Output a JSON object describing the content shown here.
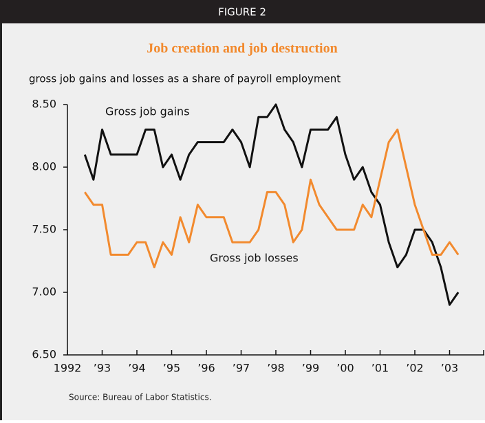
{
  "chart_data": {
    "type": "line",
    "figure_label": "FIGURE 2",
    "title": "Job creation and job destruction",
    "subtitle": "gross job gains and losses as a share of payroll employment",
    "source": "Source: Bureau of Labor Statistics.",
    "x": [
      1992.5,
      1992.75,
      1993,
      1993.25,
      1993.5,
      1993.75,
      1994,
      1994.25,
      1994.5,
      1994.75,
      1995,
      1995.25,
      1995.5,
      1995.75,
      1996,
      1996.25,
      1996.5,
      1996.75,
      1997,
      1997.25,
      1997.5,
      1997.75,
      1998,
      1998.25,
      1998.5,
      1998.75,
      1999,
      1999.25,
      1999.5,
      1999.75,
      2000,
      2000.25,
      2000.5,
      2000.75,
      2001,
      2001.25,
      2001.5,
      2001.75,
      2002,
      2002.25,
      2002.5,
      2002.75,
      2003,
      2003.25
    ],
    "series": [
      {
        "name": "Gross job gains",
        "color": "#111111",
        "values": [
          8.1,
          7.9,
          8.3,
          8.1,
          8.1,
          8.1,
          8.1,
          8.3,
          8.3,
          8.0,
          8.1,
          7.9,
          8.1,
          8.2,
          8.2,
          8.2,
          8.2,
          8.3,
          8.2,
          8.0,
          8.4,
          8.4,
          8.5,
          8.3,
          8.2,
          8.0,
          8.3,
          8.3,
          8.3,
          8.4,
          8.1,
          7.9,
          8.0,
          7.8,
          7.7,
          7.4,
          7.2,
          7.3,
          7.5,
          7.5,
          7.4,
          7.2,
          6.9,
          7.0
        ]
      },
      {
        "name": "Gross job losses",
        "color": "#f28a2e",
        "values": [
          7.8,
          7.7,
          7.7,
          7.3,
          7.3,
          7.3,
          7.4,
          7.4,
          7.2,
          7.4,
          7.3,
          7.6,
          7.4,
          7.7,
          7.6,
          7.6,
          7.6,
          7.4,
          7.4,
          7.4,
          7.5,
          7.8,
          7.8,
          7.7,
          7.4,
          7.5,
          7.9,
          7.7,
          7.6,
          7.5,
          7.5,
          7.5,
          7.7,
          7.6,
          7.9,
          8.2,
          8.3,
          8.0,
          7.7,
          7.5,
          7.3,
          7.3,
          7.4,
          7.3
        ]
      }
    ],
    "xlim": [
      1992,
      2004
    ],
    "xticks": [
      {
        "value": 1992,
        "label": "1992"
      },
      {
        "value": 1993,
        "label": "’93"
      },
      {
        "value": 1994,
        "label": "’94"
      },
      {
        "value": 1995,
        "label": "’95"
      },
      {
        "value": 1996,
        "label": "’96"
      },
      {
        "value": 1997,
        "label": "’97"
      },
      {
        "value": 1998,
        "label": "’98"
      },
      {
        "value": 1999,
        "label": "’99"
      },
      {
        "value": 2000,
        "label": "’00"
      },
      {
        "value": 2001,
        "label": "’01"
      },
      {
        "value": 2002,
        "label": "’02"
      },
      {
        "value": 2003,
        "label": "’03"
      }
    ],
    "ylim": [
      6.5,
      8.5
    ],
    "yticks": [
      {
        "value": 6.5,
        "label": "6.50"
      },
      {
        "value": 7,
        "label": "7.00"
      },
      {
        "value": 7.5,
        "label": "7.50"
      },
      {
        "value": 8,
        "label": "8.00"
      },
      {
        "value": 8.5,
        "label": "8.50"
      }
    ],
    "grid": false
  }
}
